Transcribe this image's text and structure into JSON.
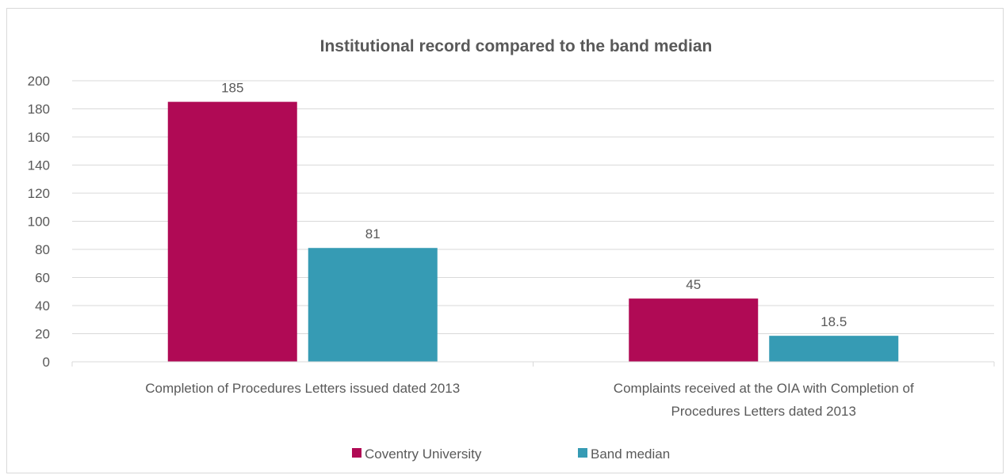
{
  "chart_data": {
    "type": "bar",
    "title": "Institutional record compared to the band median",
    "categories": [
      [
        "Completion of Procedures Letters issued dated 2013"
      ],
      [
        "Complaints received at the OIA with Completion of",
        "Procedures Letters dated 2013"
      ]
    ],
    "series": [
      {
        "name": "Coventry University",
        "values": [
          185,
          45
        ],
        "labels": [
          "185",
          "45"
        ],
        "color": "#B00A55"
      },
      {
        "name": "Band median",
        "values": [
          81,
          18.5
        ],
        "labels": [
          "81",
          "18.5"
        ],
        "color": "#369BB4"
      }
    ],
    "ylim": [
      0,
      200
    ],
    "yticks": [
      0,
      20,
      40,
      60,
      80,
      100,
      120,
      140,
      160,
      180,
      200
    ],
    "grid": true,
    "legend_position": "bottom"
  }
}
